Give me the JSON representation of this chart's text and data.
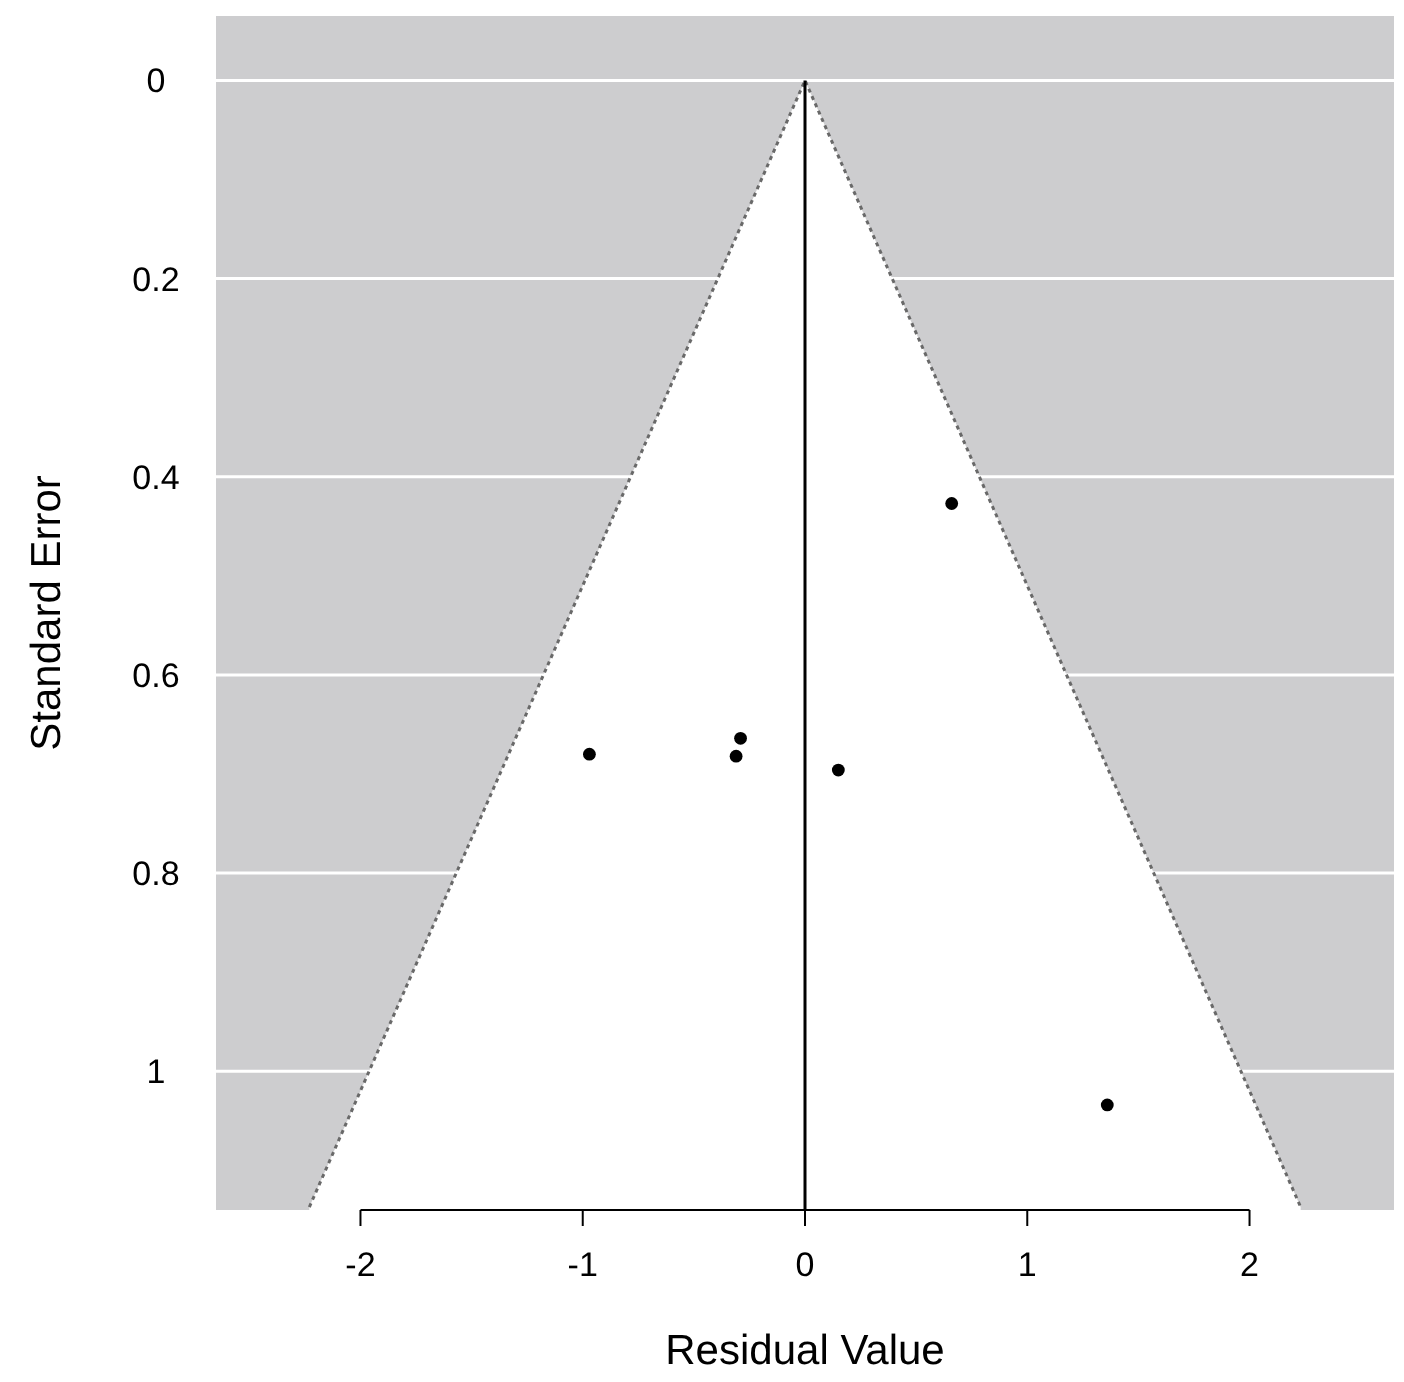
{
  "chart_data": {
    "type": "scatter",
    "xlabel": "Residual Value",
    "ylabel": "Standard Error",
    "xlim": [
      -2.65,
      2.65
    ],
    "ylim": [
      1.14,
      -0.065
    ],
    "xticks": [
      -2,
      -1,
      0,
      1,
      2
    ],
    "yticks": [
      0,
      0.2,
      0.4,
      0.6,
      0.8,
      1
    ],
    "grid": "y",
    "series": [
      {
        "marker": "circle",
        "color": "#000000",
        "x": [
          0.66,
          -0.97,
          -0.29,
          -0.31,
          0.15,
          1.36
        ],
        "values": [
          0.427,
          0.68,
          0.664,
          0.682,
          0.696,
          1.034
        ]
      },
      {
        "type": "area",
        "marker": "none",
        "color": "#ffffff",
        "line_style": "dotted",
        "x": [
          -2.23,
          0,
          2.23
        ],
        "values": [
          1.137,
          0,
          1.137
        ]
      }
    ],
    "ref_lines": [
      {
        "axis": "x",
        "value": 0,
        "color": "#000000"
      }
    ]
  }
}
